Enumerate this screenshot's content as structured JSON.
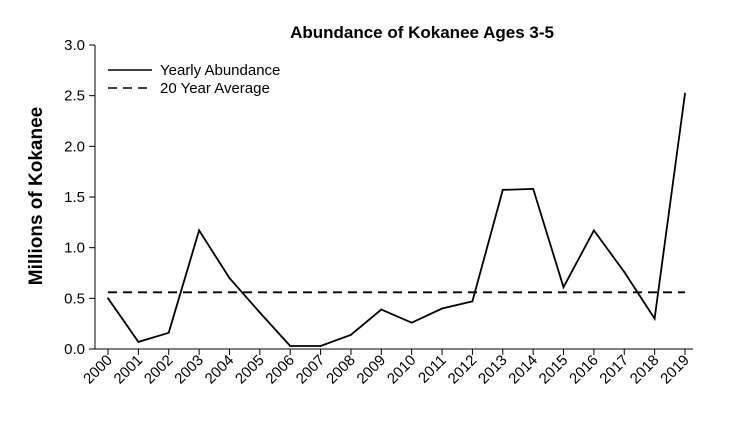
{
  "chart_data": {
    "type": "line",
    "title": "Abundance of Kokanee Ages 3-5",
    "xlabel": "",
    "ylabel": "Millions of Kokanee",
    "categories": [
      "2000",
      "2001",
      "2002",
      "2003",
      "2004",
      "2005",
      "2006",
      "2007",
      "2008",
      "2009",
      "2010",
      "2011",
      "2012",
      "2013",
      "2014",
      "2015",
      "2016",
      "2017",
      "2018",
      "2019"
    ],
    "series": [
      {
        "name": "Yearly Abundance",
        "style": "solid",
        "color": "#000000",
        "values": [
          0.5,
          0.07,
          0.16,
          1.17,
          0.7,
          0.36,
          0.03,
          0.03,
          0.14,
          0.39,
          0.26,
          0.4,
          0.47,
          1.57,
          1.58,
          0.61,
          1.17,
          0.76,
          0.3,
          2.52
        ]
      },
      {
        "name": "20 Year Average",
        "style": "dashed",
        "color": "#000000",
        "values": [
          0.56,
          0.56,
          0.56,
          0.56,
          0.56,
          0.56,
          0.56,
          0.56,
          0.56,
          0.56,
          0.56,
          0.56,
          0.56,
          0.56,
          0.56,
          0.56,
          0.56,
          0.56,
          0.56,
          0.56
        ]
      }
    ],
    "yticks": [
      "0.0",
      "0.5",
      "1.0",
      "1.5",
      "2.0",
      "2.5",
      "3.0"
    ],
    "ylim": [
      0,
      3.0
    ],
    "grid": false,
    "legend_position": "top-left"
  }
}
